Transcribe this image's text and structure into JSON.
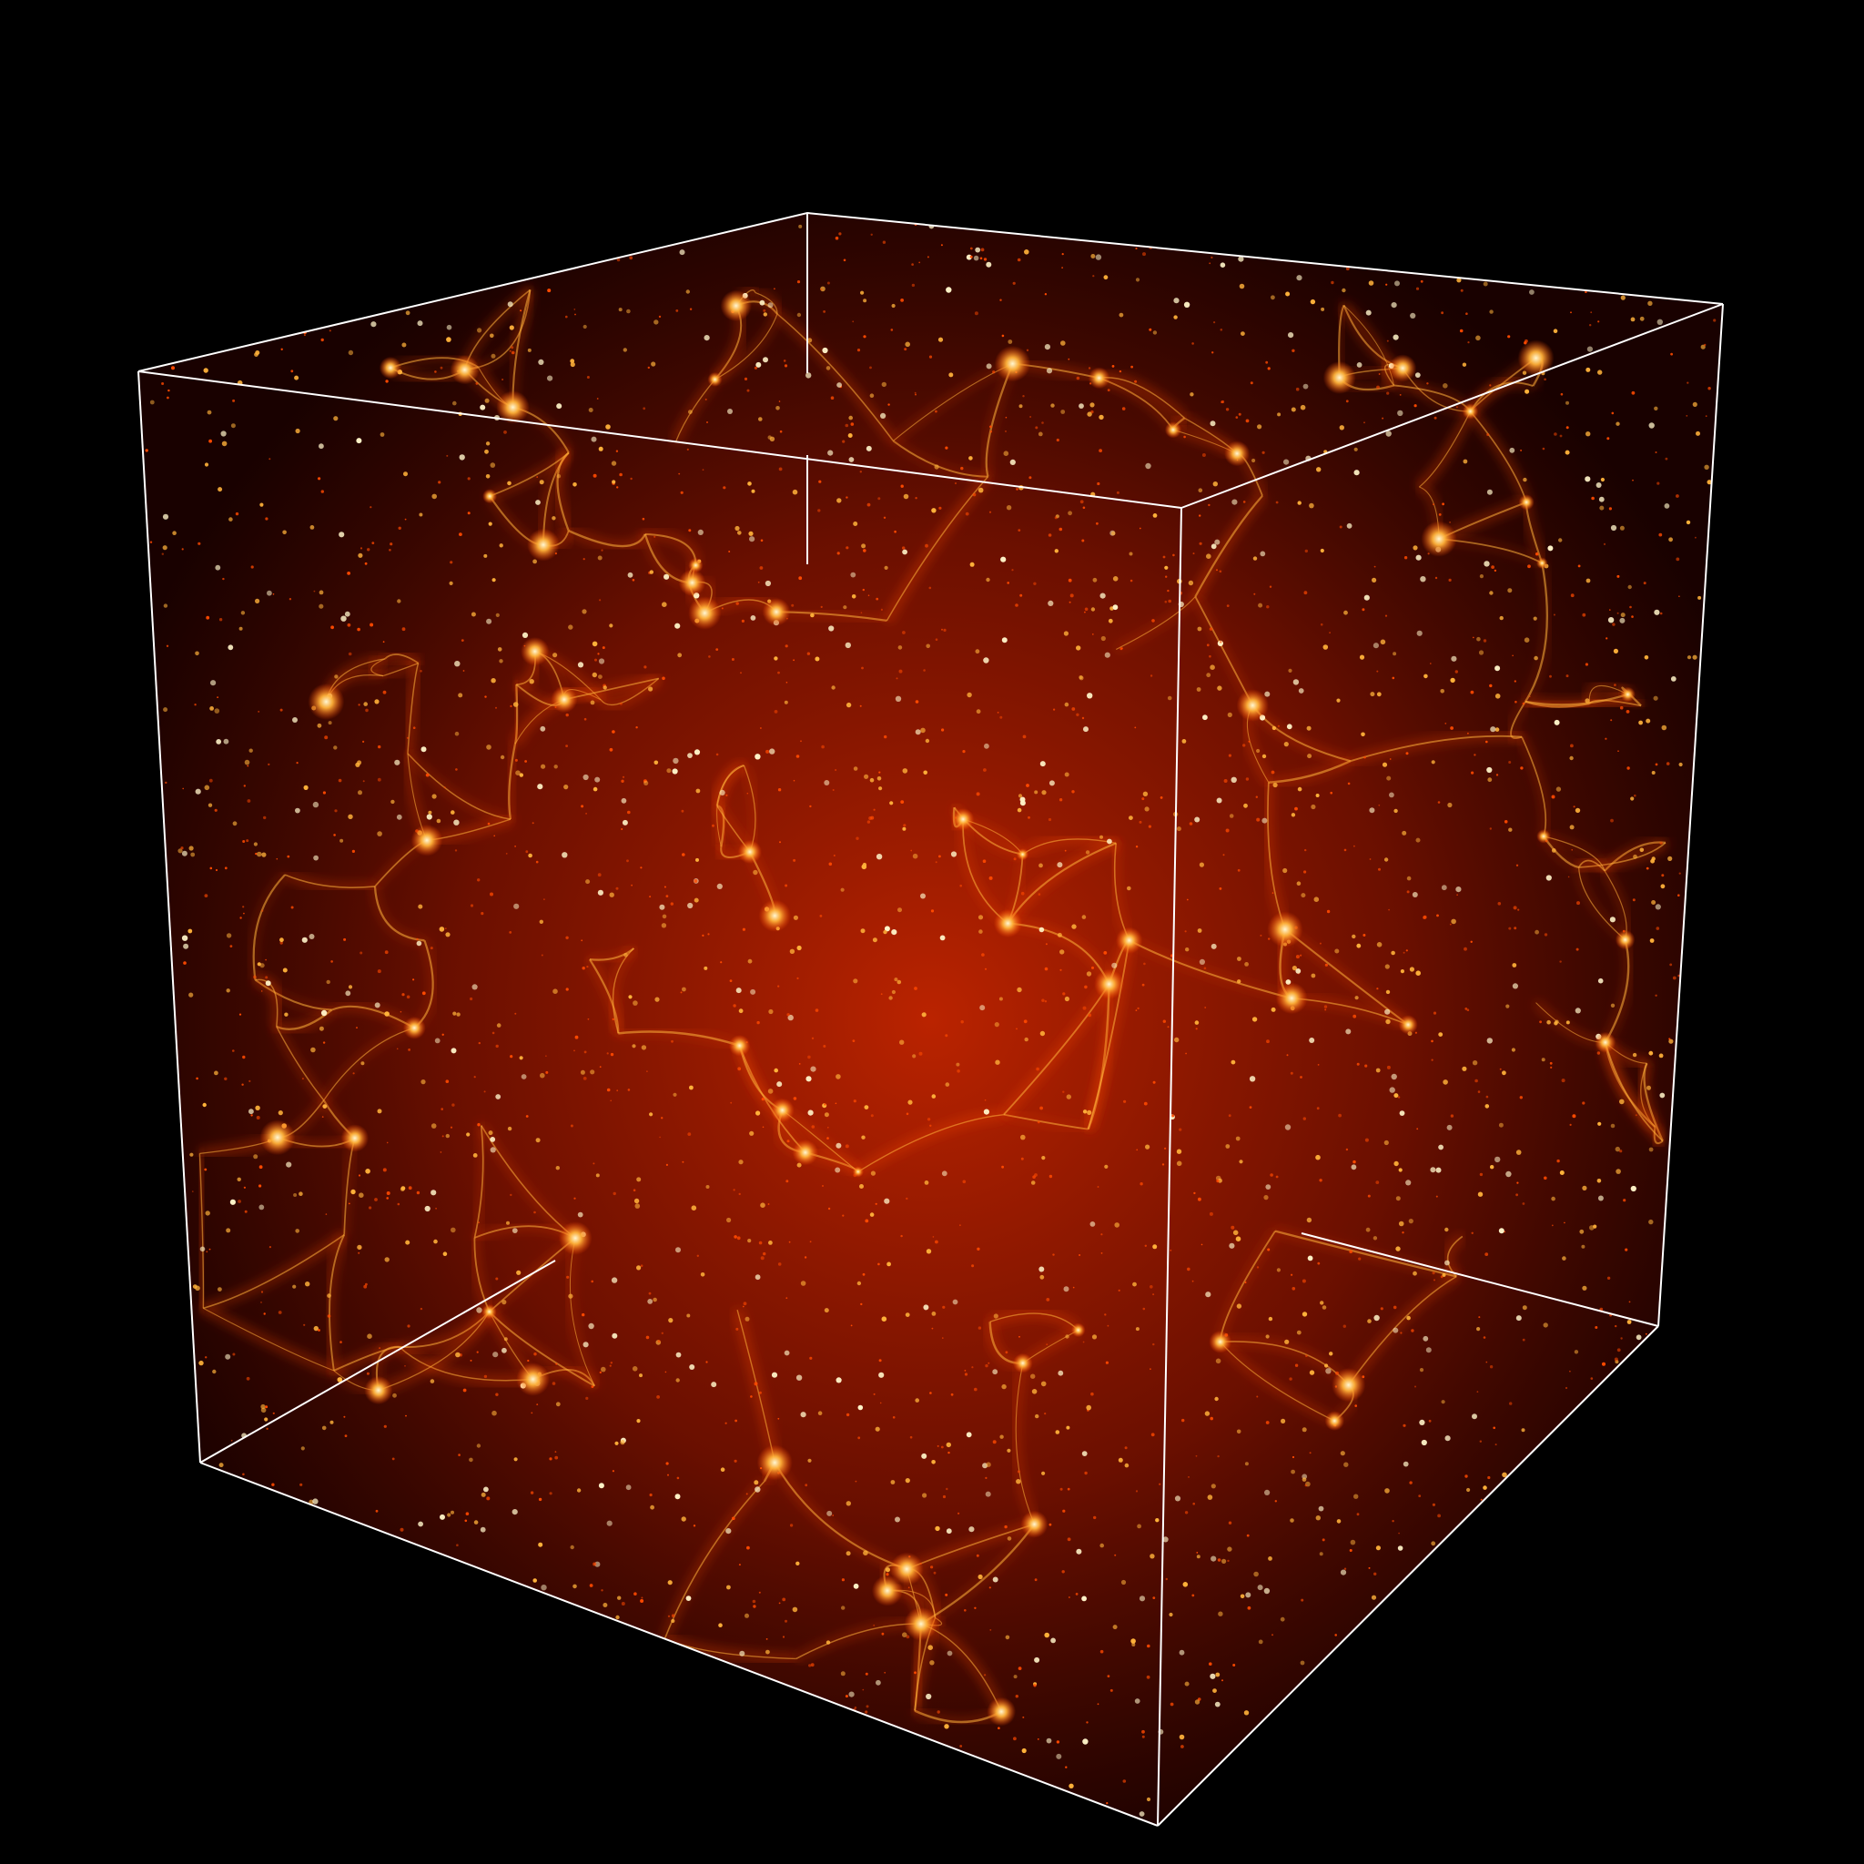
{
  "scene": {
    "subject": "cosmic-web-density-cube",
    "colors": {
      "background": "#000000",
      "frame": "#ffffff",
      "deep": "#3a0300",
      "mid": "#b51f00",
      "filament": "#ff4a00",
      "hot": "#ffb23a",
      "core": "#fff4c8"
    }
  }
}
